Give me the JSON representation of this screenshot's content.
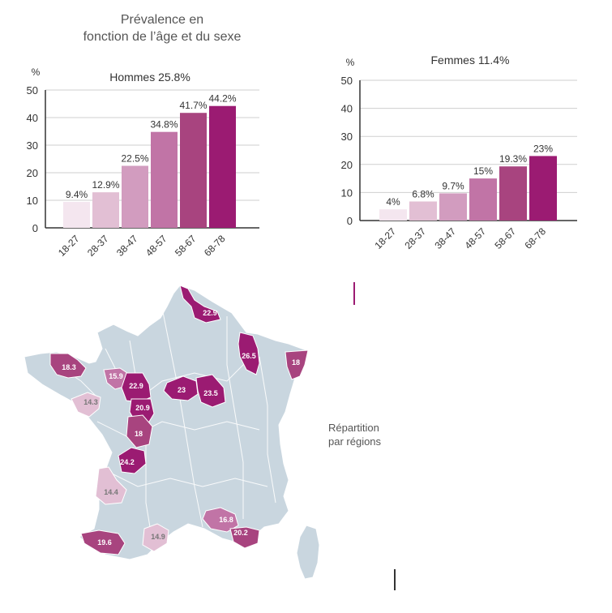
{
  "page_title": [
    "Prévalence en",
    "fonction de l’âge et du sexe"
  ],
  "region_label": [
    "Répartition",
    "par régions"
  ],
  "colors": {
    "shades": [
      "#f4e6ef",
      "#e2bfd4",
      "#d29cbf",
      "#c174a6",
      "#a8447f",
      "#9b1b72"
    ],
    "grid": "#cfcfcf",
    "axis": "#333333",
    "land": "#c9d6df",
    "border": "#ffffff"
  },
  "chart_data": [
    {
      "type": "bar",
      "title": "Hommes 25.8%",
      "ylabel": "%",
      "ylim": [
        0,
        50
      ],
      "yticks": [
        "0",
        "10",
        "20",
        "30",
        "40",
        "50"
      ],
      "categories": [
        "18-27",
        "28-37",
        "38-47",
        "48-57",
        "58-67",
        "68-78"
      ],
      "values": [
        9.4,
        12.9,
        22.5,
        34.8,
        41.7,
        44.2
      ],
      "value_labels": [
        "9.4%",
        "12.9%",
        "22.5%",
        "34.8%",
        "41.7%",
        "44.2%"
      ],
      "grid": true
    },
    {
      "type": "bar",
      "title": "Femmes 11.4%",
      "ylabel": "%",
      "ylim": [
        0,
        50
      ],
      "yticks": [
        "0",
        "10",
        "20",
        "30",
        "40",
        "50"
      ],
      "categories": [
        "18-27",
        "28-37",
        "38-47",
        "48-57",
        "58-67",
        "68-78"
      ],
      "values": [
        4,
        6.8,
        9.7,
        15,
        19.3,
        23
      ],
      "value_labels": [
        "4%",
        "6.8%",
        "9.7%",
        "15%",
        "19.3%",
        "23%"
      ],
      "grid": true
    }
  ],
  "map": {
    "regions": [
      {
        "label": "22.9",
        "shade": 5
      },
      {
        "label": "26.5",
        "shade": 5
      },
      {
        "label": "18",
        "shade": 4
      },
      {
        "label": "18.3",
        "shade": 4
      },
      {
        "label": "15.9",
        "shade": 3
      },
      {
        "label": "14.3",
        "shade": 1
      },
      {
        "label": "22.9",
        "shade": 5
      },
      {
        "label": "20.9",
        "shade": 5
      },
      {
        "label": "23",
        "shade": 5
      },
      {
        "label": "23.5",
        "shade": 5
      },
      {
        "label": "18",
        "shade": 4
      },
      {
        "label": "24.2",
        "shade": 5
      },
      {
        "label": "14.4",
        "shade": 1
      },
      {
        "label": "19.6",
        "shade": 4
      },
      {
        "label": "14.9",
        "shade": 1
      },
      {
        "label": "16.8",
        "shade": 3
      },
      {
        "label": "20.2",
        "shade": 4
      }
    ]
  }
}
